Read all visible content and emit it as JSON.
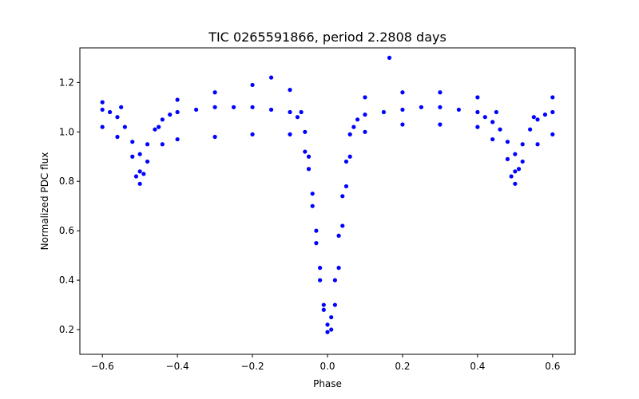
{
  "chart_data": {
    "type": "scatter",
    "title": "TIC 0265591866, period 2.2808 days",
    "xlabel": "Phase",
    "ylabel": "Normalized PDC flux",
    "xlim": [
      -0.66,
      0.66
    ],
    "ylim": [
      0.1,
      1.34
    ],
    "xticks": [
      -0.6,
      -0.4,
      -0.2,
      0.0,
      0.2,
      0.4,
      0.6
    ],
    "xtick_labels": [
      "−0.6",
      "−0.4",
      "−0.2",
      "0.0",
      "0.2",
      "0.4",
      "0.6"
    ],
    "yticks": [
      0.2,
      0.4,
      0.6,
      0.8,
      1.0,
      1.2
    ],
    "ytick_labels": [
      "0.2",
      "0.4",
      "0.6",
      "0.8",
      "1.0",
      "1.2"
    ],
    "grid": false,
    "marker_color": "#0000ff",
    "series": [
      {
        "x": [
          -0.6,
          -0.58,
          -0.56,
          -0.54,
          -0.52,
          -0.5,
          -0.48,
          -0.46,
          -0.44,
          -0.42,
          -0.4,
          -0.35,
          -0.3,
          -0.25,
          -0.2,
          -0.15,
          -0.1,
          -0.08,
          -0.06,
          -0.05,
          -0.04,
          -0.03,
          -0.02,
          -0.01,
          0.0,
          0.01,
          0.02,
          0.03,
          0.04,
          0.05,
          0.06,
          0.08,
          0.1,
          0.15,
          0.2,
          0.25,
          0.3,
          0.35,
          0.4,
          0.42,
          0.44,
          0.46,
          0.48,
          0.5,
          0.52,
          0.54,
          0.56,
          0.58,
          0.6
        ],
        "y": [
          1.09,
          1.08,
          1.06,
          1.02,
          0.96,
          0.91,
          0.95,
          1.01,
          1.05,
          1.07,
          1.08,
          1.09,
          1.1,
          1.1,
          1.1,
          1.09,
          1.08,
          1.06,
          1.0,
          0.9,
          0.75,
          0.6,
          0.45,
          0.3,
          0.22,
          0.25,
          0.4,
          0.58,
          0.74,
          0.88,
          0.99,
          1.05,
          1.07,
          1.08,
          1.09,
          1.1,
          1.1,
          1.09,
          1.08,
          1.06,
          1.04,
          1.01,
          0.96,
          0.91,
          0.95,
          1.01,
          1.05,
          1.07,
          1.08
        ]
      },
      {
        "x": [
          -0.6,
          -0.56,
          -0.52,
          -0.5,
          -0.48,
          -0.44,
          -0.4,
          -0.3,
          -0.2,
          -0.1,
          -0.06,
          -0.04,
          -0.02,
          0.0,
          0.02,
          0.04,
          0.06,
          0.1,
          0.2,
          0.3,
          0.4,
          0.44,
          0.48,
          0.5,
          0.52,
          0.56,
          0.6
        ],
        "y": [
          1.02,
          0.98,
          0.9,
          0.84,
          0.88,
          0.95,
          0.97,
          0.98,
          0.99,
          0.99,
          0.92,
          0.7,
          0.4,
          0.19,
          0.3,
          0.62,
          0.9,
          1.0,
          1.03,
          1.03,
          1.02,
          0.97,
          0.89,
          0.84,
          0.88,
          0.95,
          0.99
        ]
      },
      {
        "x": [
          -0.6,
          -0.55,
          -0.51,
          -0.5,
          -0.49,
          -0.45,
          -0.4,
          -0.3,
          -0.2,
          -0.15,
          -0.1,
          -0.07,
          -0.05,
          -0.03,
          -0.01,
          0.01,
          0.03,
          0.05,
          0.07,
          0.1,
          0.2,
          0.3,
          0.4,
          0.45,
          0.49,
          0.5,
          0.51,
          0.55,
          0.6
        ],
        "y": [
          1.12,
          1.1,
          0.82,
          0.79,
          0.83,
          1.02,
          1.13,
          1.16,
          1.19,
          1.22,
          1.17,
          1.08,
          0.85,
          0.55,
          0.28,
          0.2,
          0.45,
          0.78,
          1.02,
          1.14,
          1.16,
          1.16,
          1.14,
          1.08,
          0.82,
          0.79,
          0.85,
          1.06,
          1.14
        ]
      },
      {
        "x": [
          0.165
        ],
        "y": [
          1.3
        ]
      }
    ]
  }
}
